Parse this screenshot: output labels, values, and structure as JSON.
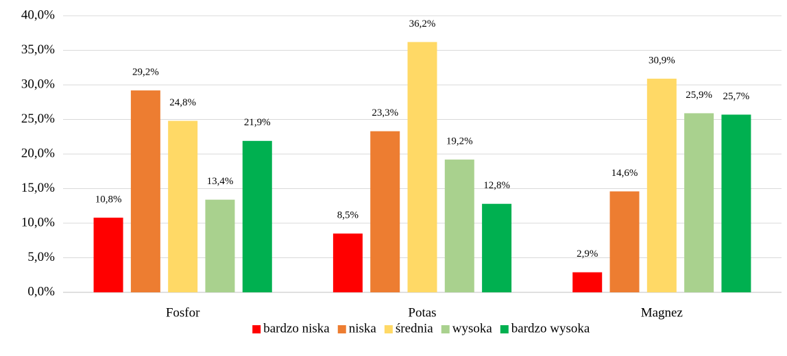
{
  "chart_data": {
    "type": "bar",
    "categories": [
      "Fosfor",
      "Potas",
      "Magnez"
    ],
    "series": [
      {
        "name": "bardzo niska",
        "color": "#ff0000",
        "values": [
          10.8,
          8.5,
          2.9
        ],
        "value_labels": [
          "10,8%",
          "8,5%",
          "2,9%"
        ]
      },
      {
        "name": "niska",
        "color": "#ed7d31",
        "values": [
          29.2,
          23.3,
          14.6
        ],
        "value_labels": [
          "29,2%",
          "23,3%",
          "14,6%"
        ]
      },
      {
        "name": "średnia",
        "color": "#ffd966",
        "values": [
          24.8,
          36.2,
          30.9
        ],
        "value_labels": [
          "24,8%",
          "36,2%",
          "30,9%"
        ]
      },
      {
        "name": "wysoka",
        "color": "#a9d18e",
        "values": [
          13.4,
          19.2,
          25.9
        ],
        "value_labels": [
          "13,4%",
          "19,2%",
          "25,9%"
        ]
      },
      {
        "name": "bardzo wysoka",
        "color": "#00b050",
        "values": [
          21.9,
          12.8,
          25.7
        ],
        "value_labels": [
          "21,9%",
          "12,8%",
          "25,7%"
        ]
      }
    ],
    "ylim": [
      0,
      40
    ],
    "yticks": [
      {
        "value": 0,
        "label": "0,0%"
      },
      {
        "value": 5,
        "label": "5,0%"
      },
      {
        "value": 10,
        "label": "10,0%"
      },
      {
        "value": 15,
        "label": "15,0%"
      },
      {
        "value": 20,
        "label": "20,0%"
      },
      {
        "value": 25,
        "label": "25,0%"
      },
      {
        "value": 30,
        "label": "30,0%"
      },
      {
        "value": 35,
        "label": "35,0%"
      },
      {
        "value": 40,
        "label": "40,0%"
      }
    ],
    "grid": true,
    "legend": "bottom"
  }
}
